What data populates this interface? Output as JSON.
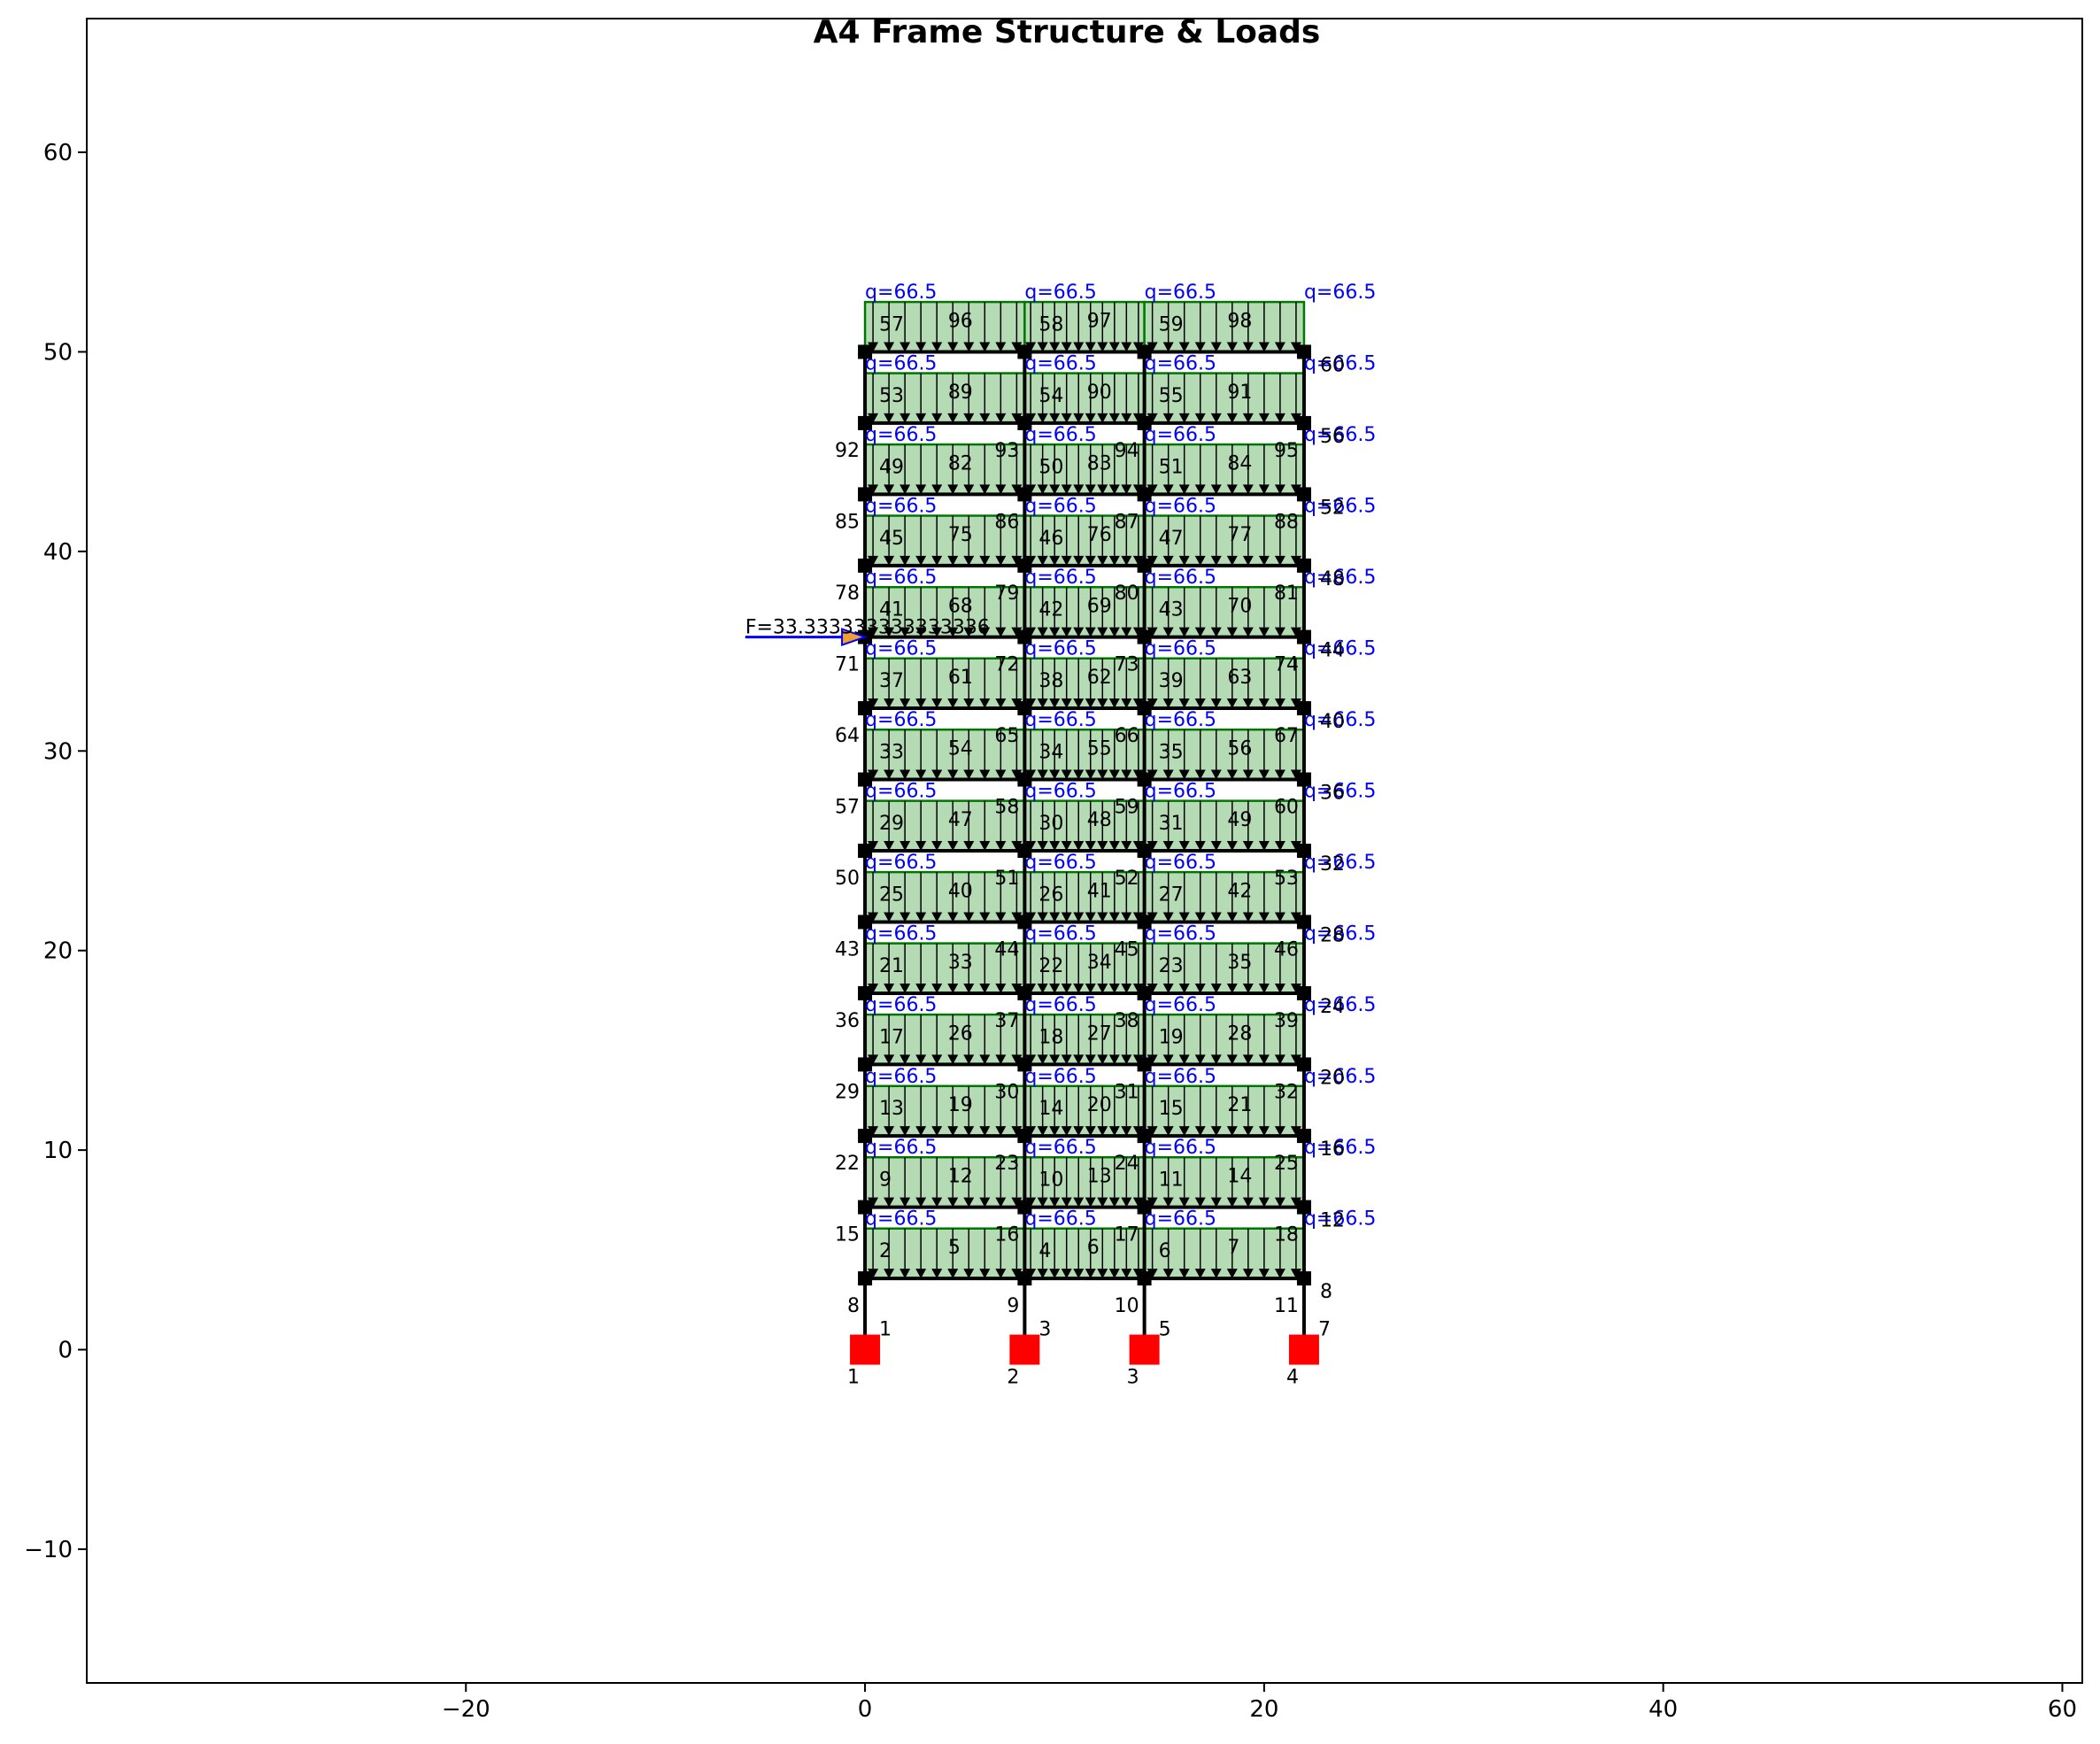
{
  "chart_data": {
    "type": "structural-frame",
    "title": "A4 Frame Structure & Loads",
    "xlim": [
      -39,
      61
    ],
    "ylim": [
      -16.7,
      66.7
    ],
    "x_ticks": [
      {
        "v": -20,
        "label": "−20"
      },
      {
        "v": 0,
        "label": "0"
      },
      {
        "v": 20,
        "label": "20"
      },
      {
        "v": 40,
        "label": "40"
      },
      {
        "v": 60,
        "label": "60"
      }
    ],
    "y_ticks": [
      {
        "v": -10,
        "label": "−10"
      },
      {
        "v": 0,
        "label": "0"
      },
      {
        "v": 10,
        "label": "10"
      },
      {
        "v": 20,
        "label": "20"
      },
      {
        "v": 30,
        "label": "30"
      },
      {
        "v": 40,
        "label": "40"
      },
      {
        "v": 50,
        "label": "50"
      },
      {
        "v": 60,
        "label": "60"
      }
    ],
    "columns_x": [
      0,
      8,
      14,
      22
    ],
    "floor_levels": [
      3.57,
      7.14,
      10.71,
      14.29,
      17.86,
      21.43,
      25.0,
      28.57,
      32.14,
      35.71,
      39.29,
      42.86,
      46.43,
      50.0
    ],
    "supports_x": [
      0,
      8,
      14,
      22
    ],
    "uniform_load": "q=66.5",
    "load_block_height": 2.5,
    "node_labels": [
      {
        "x": 0,
        "y": 0,
        "text": "1"
      },
      {
        "x": 8,
        "y": 0,
        "text": "2"
      },
      {
        "x": 14,
        "y": 0,
        "text": "3"
      },
      {
        "x": 22,
        "y": 0,
        "text": "4"
      },
      {
        "x": 0,
        "y": 3.57,
        "text": "8"
      },
      {
        "x": 8,
        "y": 3.57,
        "text": "9"
      },
      {
        "x": 14,
        "y": 3.57,
        "text": "10"
      },
      {
        "x": 22,
        "y": 3.57,
        "text": "11"
      },
      {
        "x": 0,
        "y": 7.14,
        "text": "15"
      },
      {
        "x": 8,
        "y": 7.14,
        "text": "16"
      },
      {
        "x": 14,
        "y": 7.14,
        "text": "17"
      },
      {
        "x": 22,
        "y": 7.14,
        "text": "18"
      },
      {
        "x": 0,
        "y": 10.71,
        "text": "22"
      },
      {
        "x": 8,
        "y": 10.71,
        "text": "23"
      },
      {
        "x": 14,
        "y": 10.71,
        "text": "24"
      },
      {
        "x": 22,
        "y": 10.71,
        "text": "25"
      },
      {
        "x": 0,
        "y": 14.29,
        "text": "29"
      },
      {
        "x": 8,
        "y": 14.29,
        "text": "30"
      },
      {
        "x": 14,
        "y": 14.29,
        "text": "31"
      },
      {
        "x": 22,
        "y": 14.29,
        "text": "32"
      },
      {
        "x": 0,
        "y": 17.86,
        "text": "36"
      },
      {
        "x": 8,
        "y": 17.86,
        "text": "37"
      },
      {
        "x": 14,
        "y": 17.86,
        "text": "38"
      },
      {
        "x": 22,
        "y": 17.86,
        "text": "39"
      },
      {
        "x": 0,
        "y": 21.43,
        "text": "43"
      },
      {
        "x": 8,
        "y": 21.43,
        "text": "44"
      },
      {
        "x": 14,
        "y": 21.43,
        "text": "45"
      },
      {
        "x": 22,
        "y": 21.43,
        "text": "46"
      },
      {
        "x": 0,
        "y": 25.0,
        "text": "50"
      },
      {
        "x": 8,
        "y": 25.0,
        "text": "51"
      },
      {
        "x": 14,
        "y": 25.0,
        "text": "52"
      },
      {
        "x": 22,
        "y": 25.0,
        "text": "53"
      },
      {
        "x": 0,
        "y": 28.57,
        "text": "57"
      },
      {
        "x": 8,
        "y": 28.57,
        "text": "58"
      },
      {
        "x": 14,
        "y": 28.57,
        "text": "59"
      },
      {
        "x": 22,
        "y": 28.57,
        "text": "60"
      },
      {
        "x": 0,
        "y": 32.14,
        "text": "64"
      },
      {
        "x": 8,
        "y": 32.14,
        "text": "65"
      },
      {
        "x": 14,
        "y": 32.14,
        "text": "66"
      },
      {
        "x": 22,
        "y": 32.14,
        "text": "67"
      },
      {
        "x": 0,
        "y": 35.71,
        "text": "71"
      },
      {
        "x": 8,
        "y": 35.71,
        "text": "72"
      },
      {
        "x": 14,
        "y": 35.71,
        "text": "73"
      },
      {
        "x": 22,
        "y": 35.71,
        "text": "74"
      },
      {
        "x": 0,
        "y": 39.29,
        "text": "78"
      },
      {
        "x": 8,
        "y": 39.29,
        "text": "79"
      },
      {
        "x": 14,
        "y": 39.29,
        "text": "80"
      },
      {
        "x": 22,
        "y": 39.29,
        "text": "81"
      },
      {
        "x": 0,
        "y": 42.86,
        "text": "85"
      },
      {
        "x": 8,
        "y": 42.86,
        "text": "86"
      },
      {
        "x": 14,
        "y": 42.86,
        "text": "87"
      },
      {
        "x": 22,
        "y": 42.86,
        "text": "88"
      },
      {
        "x": 0,
        "y": 46.43,
        "text": "92"
      },
      {
        "x": 8,
        "y": 46.43,
        "text": "93"
      },
      {
        "x": 14,
        "y": 46.43,
        "text": "94"
      },
      {
        "x": 22,
        "y": 46.43,
        "text": "95"
      }
    ],
    "column_labels": [
      {
        "x": 0,
        "y": 0,
        "text": "1"
      },
      {
        "x": 8,
        "y": 0,
        "text": "3"
      },
      {
        "x": 14,
        "y": 0,
        "text": "5"
      },
      {
        "x": 22,
        "y": 0,
        "text": "7"
      }
    ],
    "right_labels": [
      {
        "y": 3.57,
        "text": "8"
      },
      {
        "y": 7.14,
        "text": "12"
      },
      {
        "y": 10.71,
        "text": "16"
      },
      {
        "y": 14.29,
        "text": "20"
      },
      {
        "y": 17.86,
        "text": "24"
      },
      {
        "y": 21.43,
        "text": "28"
      },
      {
        "y": 25.0,
        "text": "32"
      },
      {
        "y": 28.57,
        "text": "36"
      },
      {
        "y": 32.14,
        "text": "40"
      },
      {
        "y": 35.71,
        "text": "44"
      },
      {
        "y": 39.29,
        "text": "48"
      },
      {
        "y": 42.86,
        "text": "52"
      },
      {
        "y": 46.43,
        "text": "56"
      },
      {
        "y": 50.0,
        "text": "60"
      }
    ],
    "beam_labels": [
      {
        "y": 3.57,
        "labels": [
          "2",
          "5",
          "4",
          "6",
          "6",
          "7"
        ]
      },
      {
        "y": 7.14,
        "labels": [
          "9",
          "12",
          "10",
          "13",
          "11",
          "14"
        ]
      },
      {
        "y": 10.71,
        "labels": [
          "13",
          "19",
          "14",
          "20",
          "15",
          "21"
        ]
      },
      {
        "y": 14.29,
        "labels": [
          "17",
          "26",
          "18",
          "27",
          "19",
          "28"
        ]
      },
      {
        "y": 17.86,
        "labels": [
          "21",
          "33",
          "22",
          "34",
          "23",
          "35"
        ]
      },
      {
        "y": 21.43,
        "labels": [
          "25",
          "40",
          "26",
          "41",
          "27",
          "42"
        ]
      },
      {
        "y": 25.0,
        "labels": [
          "29",
          "47",
          "30",
          "48",
          "31",
          "49"
        ]
      },
      {
        "y": 28.57,
        "labels": [
          "33",
          "54",
          "34",
          "55",
          "35",
          "56"
        ]
      },
      {
        "y": 32.14,
        "labels": [
          "37",
          "61",
          "38",
          "62",
          "39",
          "63"
        ]
      },
      {
        "y": 35.71,
        "labels": [
          "41",
          "68",
          "42",
          "69",
          "43",
          "70"
        ]
      },
      {
        "y": 39.29,
        "labels": [
          "45",
          "75",
          "46",
          "76",
          "47",
          "77"
        ]
      },
      {
        "y": 42.86,
        "labels": [
          "49",
          "82",
          "50",
          "83",
          "51",
          "84"
        ]
      },
      {
        "y": 46.43,
        "labels": [
          "53",
          "89",
          "54",
          "90",
          "55",
          "91"
        ]
      },
      {
        "y": 50.0,
        "labels": [
          "57",
          "96",
          "58",
          "97",
          "59",
          "98"
        ]
      }
    ],
    "point_load": {
      "label": "F=33.333333333333336",
      "x": 0,
      "y": 35.71,
      "from_x": -6,
      "color": "#0000ff"
    },
    "colors": {
      "load_fill": "#b5dbb5",
      "load_edge": "#007700",
      "load_text": "#0000ff",
      "support": "#ff0000",
      "frame": "#000000"
    }
  }
}
